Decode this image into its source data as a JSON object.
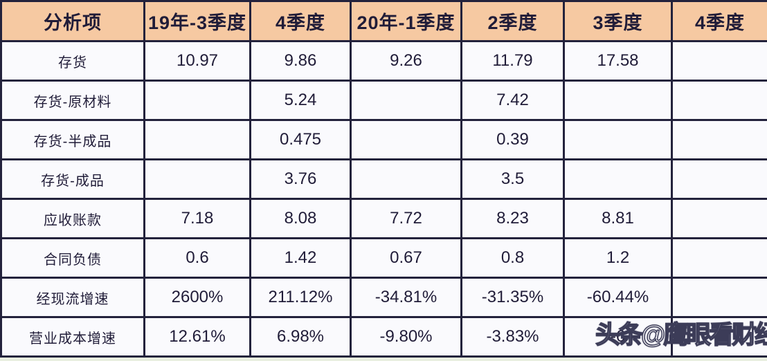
{
  "chart_data": {
    "type": "table",
    "columns": [
      "分析项",
      "19年-3季度",
      "4季度",
      "20年-1季度",
      "2季度",
      "3季度",
      "4季度"
    ],
    "rows": [
      {
        "label": "存货",
        "values": [
          "10.97",
          "9.86",
          "9.26",
          "11.79",
          "17.58",
          ""
        ]
      },
      {
        "label": "存货-原材料",
        "values": [
          "",
          "5.24",
          "",
          "7.42",
          "",
          ""
        ]
      },
      {
        "label": "存货-半成品",
        "values": [
          "",
          "0.475",
          "",
          "0.39",
          "",
          ""
        ]
      },
      {
        "label": "存货-成品",
        "values": [
          "",
          "3.76",
          "",
          "3.5",
          "",
          ""
        ]
      },
      {
        "label": "应收账款",
        "values": [
          "7.18",
          "8.08",
          "7.72",
          "8.23",
          "8.81",
          ""
        ]
      },
      {
        "label": "合同负债",
        "values": [
          "0.6",
          "1.42",
          "0.67",
          "0.8",
          "1.2",
          ""
        ]
      },
      {
        "label": "经现流增速",
        "values": [
          "2600%",
          "211.12%",
          "-34.81%",
          "-31.35%",
          "-60.44%",
          ""
        ]
      },
      {
        "label": "营业成本增速",
        "values": [
          "12.61%",
          "6.98%",
          "-9.80%",
          "-3.83%",
          "-6",
          ""
        ]
      }
    ],
    "title": "",
    "legend": [],
    "grid": true
  },
  "watermark": {
    "text": "头条@鹰眼看财经"
  },
  "colors": {
    "header_bg": "#F6C9A2",
    "cell_bg": "#FAFAFD",
    "border": "#23223C",
    "text": "#201C38",
    "watermark_fill": "#FFFFFF",
    "watermark_outline": "#3C3C58",
    "page_bg": "#E9EFE0"
  }
}
